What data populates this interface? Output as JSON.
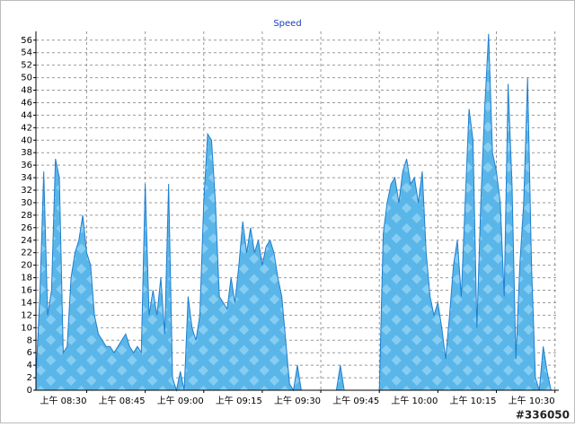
{
  "chart_data": {
    "type": "area",
    "title": "Speed",
    "watermark": "#336050",
    "color": "#5ab6e8",
    "line_color": "#1f7fd0",
    "grid": true,
    "x": [
      497,
      498,
      499,
      500,
      501,
      502,
      503,
      504,
      505,
      506,
      507,
      508,
      509,
      510,
      511,
      512,
      513,
      514,
      515,
      516,
      517,
      518,
      519,
      520,
      521,
      522,
      523,
      524,
      525,
      526,
      527,
      528,
      529,
      530,
      531,
      532,
      533,
      534,
      535,
      536,
      537,
      538,
      539,
      540,
      541,
      542,
      543,
      544,
      545,
      546,
      547,
      548,
      549,
      550,
      551,
      552,
      553,
      554,
      555,
      556,
      557,
      558,
      559,
      560,
      561,
      562,
      563,
      564,
      565,
      566,
      567,
      568,
      569,
      570,
      571,
      572,
      573,
      574,
      575,
      576,
      577,
      578,
      579,
      580,
      581,
      582,
      583,
      584,
      585,
      586,
      587,
      588,
      589,
      590,
      591,
      592,
      593,
      594,
      595,
      596,
      597,
      598,
      599,
      600,
      601,
      602,
      603,
      604,
      605,
      606,
      607,
      608,
      609,
      610,
      611,
      612,
      613,
      614,
      615,
      616,
      617,
      618,
      619,
      620,
      621,
      622,
      623,
      624,
      625,
      626,
      627,
      628,
      629,
      630,
      631
    ],
    "values": [
      2,
      15,
      35,
      12,
      16,
      37,
      34,
      6,
      7,
      18,
      22,
      24,
      28,
      22,
      20,
      12,
      9,
      8,
      7,
      7,
      6,
      7,
      8,
      9,
      7,
      6,
      7,
      6,
      33,
      12,
      16,
      12,
      18,
      9,
      33,
      2,
      0,
      3,
      0,
      15,
      10,
      8,
      12,
      30,
      41,
      40,
      30,
      15,
      14,
      13,
      18,
      14,
      20,
      27,
      22,
      26,
      22,
      24,
      20,
      23,
      24,
      22,
      18,
      15,
      8,
      1,
      0,
      4,
      0,
      0,
      0,
      0,
      0,
      0,
      0,
      0,
      0,
      0,
      4,
      0,
      0,
      0,
      0,
      0,
      0,
      0,
      0,
      0,
      0,
      25,
      30,
      33,
      34,
      30,
      35,
      37,
      33,
      34,
      30,
      35,
      22,
      15,
      12,
      14,
      10,
      5,
      12,
      20,
      24,
      15,
      30,
      45,
      40,
      10,
      30,
      45,
      57,
      38,
      35,
      30,
      15,
      49,
      33,
      5,
      20,
      30,
      50,
      20,
      2,
      0,
      7,
      3,
      0,
      0,
      0
    ],
    "xlim": [
      497,
      631
    ],
    "xticks": [
      {
        "value": 510,
        "label": "上午 08:30"
      },
      {
        "value": 525,
        "label": "上午 08:45"
      },
      {
        "value": 540,
        "label": "上午 09:00"
      },
      {
        "value": 555,
        "label": "上午 09:15"
      },
      {
        "value": 570,
        "label": "上午 09:30"
      },
      {
        "value": 585,
        "label": "上午 09:45"
      },
      {
        "value": 600,
        "label": "上午 10:00"
      },
      {
        "value": 615,
        "label": "上午 10:15"
      },
      {
        "value": 630,
        "label": "上午 10:30"
      }
    ],
    "ylim": [
      0,
      57.4
    ],
    "yticks": [
      0,
      2,
      4,
      6,
      8,
      10,
      12,
      14,
      16,
      18,
      20,
      22,
      24,
      26,
      28,
      30,
      32,
      34,
      36,
      38,
      40,
      42,
      44,
      46,
      48,
      50,
      52,
      54,
      56
    ]
  }
}
